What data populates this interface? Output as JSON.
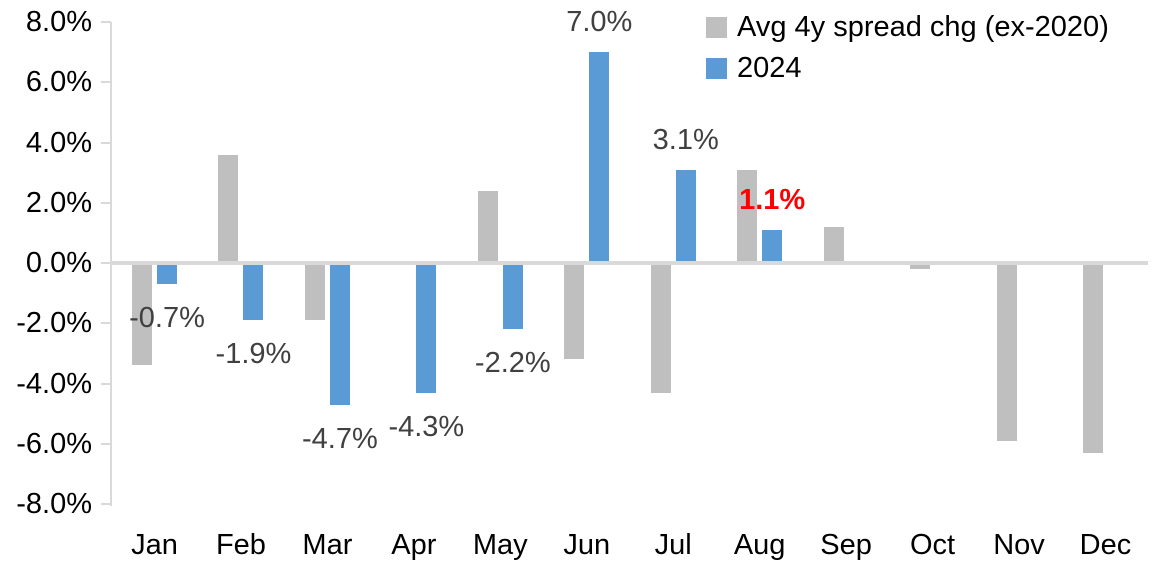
{
  "chart_data": {
    "type": "bar",
    "title": "",
    "xlabel": "",
    "ylabel": "",
    "grid": false,
    "legend_position": "top-right",
    "categories": [
      "Jan",
      "Feb",
      "Mar",
      "Apr",
      "May",
      "Jun",
      "Jul",
      "Aug",
      "Sep",
      "Oct",
      "Nov",
      "Dec"
    ],
    "y_axis": {
      "min": -8,
      "max": 8,
      "step": 2,
      "ticks": [
        {
          "value": 8,
          "label": "8.0%"
        },
        {
          "value": 6,
          "label": "6.0%"
        },
        {
          "value": 4,
          "label": "4.0%"
        },
        {
          "value": 2,
          "label": "2.0%"
        },
        {
          "value": 0,
          "label": "0.0%"
        },
        {
          "value": -2,
          "label": "-2.0%"
        },
        {
          "value": -4,
          "label": "-4.0%"
        },
        {
          "value": -6,
          "label": "-6.0%"
        },
        {
          "value": -8,
          "label": "-8.0%"
        }
      ],
      "axis_color": "#d9d9d9"
    },
    "series": [
      {
        "name": "Avg 4y spread chg (ex-2020)",
        "key": "avg4y",
        "color": "#bfbfbf",
        "values": [
          -3.4,
          3.6,
          -1.9,
          0.0,
          2.4,
          -3.2,
          -4.3,
          3.1,
          1.2,
          -0.2,
          -5.9,
          -6.3
        ]
      },
      {
        "name": "2024",
        "key": "2024",
        "color": "#5b9bd5",
        "values": [
          -0.7,
          -1.9,
          -4.7,
          -4.3,
          -2.2,
          7.0,
          3.1,
          1.1,
          null,
          null,
          null,
          null
        ]
      }
    ],
    "data_labels": [
      {
        "category": "Jan",
        "text": "-0.7%",
        "color": "#404040",
        "bold": false
      },
      {
        "category": "Feb",
        "text": "-1.9%",
        "color": "#404040",
        "bold": false
      },
      {
        "category": "Mar",
        "text": "-4.7%",
        "color": "#404040",
        "bold": false
      },
      {
        "category": "Apr",
        "text": "-4.3%",
        "color": "#404040",
        "bold": false
      },
      {
        "category": "May",
        "text": "-2.2%",
        "color": "#404040",
        "bold": false
      },
      {
        "category": "Jun",
        "text": "7.0%",
        "color": "#404040",
        "bold": false
      },
      {
        "category": "Jul",
        "text": "3.1%",
        "color": "#404040",
        "bold": false
      },
      {
        "category": "Aug",
        "text": "1.1%",
        "color": "#ff0000",
        "bold": true
      }
    ]
  }
}
